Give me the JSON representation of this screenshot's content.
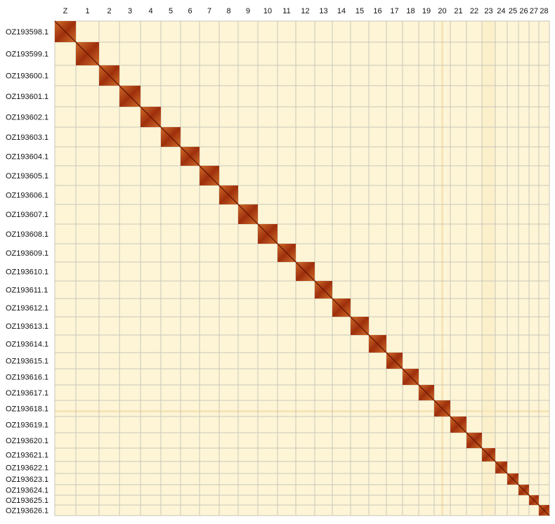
{
  "columns": [
    "Z",
    "1",
    "2",
    "3",
    "4",
    "5",
    "6",
    "7",
    "8",
    "9",
    "10",
    "11",
    "12",
    "13",
    "14",
    "15",
    "16",
    "17",
    "18",
    "19",
    "20",
    "21",
    "22",
    "23",
    "24",
    "25",
    "26",
    "27",
    "28"
  ],
  "rows": [
    "OZ193598.1",
    "OZ193599.1",
    "OZ193600.1",
    "OZ193601.1",
    "OZ193602.1",
    "OZ193603.1",
    "OZ193604.1",
    "OZ193605.1",
    "OZ193606.1",
    "OZ193607.1",
    "OZ193608.1",
    "OZ193609.1",
    "OZ193610.1",
    "OZ193611.1",
    "OZ193612.1",
    "OZ193613.1",
    "OZ193614.1",
    "OZ193615.1",
    "OZ193616.1",
    "OZ193617.1",
    "OZ193618.1",
    "OZ193619.1",
    "OZ193620.1",
    "OZ193621.1",
    "OZ193622.1",
    "OZ193623.1",
    "OZ193624.1",
    "OZ193625.1",
    "OZ193626.1"
  ]
}
